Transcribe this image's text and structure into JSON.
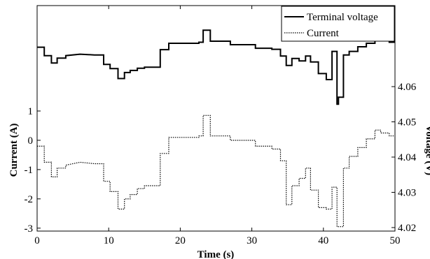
{
  "chart_data": {
    "type": "line",
    "title": "",
    "xlabel": "Time (s)",
    "ylabel_left": "Current (A)",
    "ylabel_right": "Voltage (V)",
    "xlim": [
      0,
      50
    ],
    "ylim_left": [
      -3.1,
      4.6
    ],
    "ylim_right": [
      4.019,
      4.083
    ],
    "x_ticks": [
      "0",
      "10",
      "20",
      "30",
      "40",
      "50"
    ],
    "y_ticks_left": [
      "-3",
      "-2",
      "-1",
      "0",
      "1"
    ],
    "y_ticks_right": [
      "4.02",
      "4.03",
      "4.04",
      "4.05",
      "4.06"
    ],
    "legend_position": "top-right",
    "grid": false,
    "series": [
      {
        "name": "Terminal voltage",
        "axis": "right",
        "style": "solid",
        "color": "#000000",
        "x": [
          0,
          1,
          1,
          2,
          2,
          2.8,
          2.8,
          4,
          4,
          6,
          8,
          9.3,
          9.3,
          10.2,
          10.2,
          11.3,
          11.3,
          12.2,
          12.2,
          13,
          13,
          14,
          14,
          15,
          15,
          17.2,
          17.2,
          18.4,
          18.4,
          22.6,
          22.6,
          23.2,
          23.2,
          24.2,
          24.2,
          27,
          27,
          30.5,
          30.5,
          32.8,
          32.8,
          34,
          34,
          34.8,
          34.8,
          35.6,
          35.6,
          36.6,
          36.6,
          37.5,
          37.5,
          38.2,
          38.2,
          39.3,
          39.3,
          40.4,
          40.4,
          41.2,
          41.2,
          41.9,
          41.9,
          42.1,
          42.1,
          42.8,
          42.8,
          43.6,
          43.6,
          44.8,
          44.8,
          46,
          46,
          47.2,
          47.2,
          48,
          48,
          49.2,
          49.2,
          50
        ],
        "y": [
          4.0712,
          4.0712,
          4.0688,
          4.0688,
          4.0667,
          4.0667,
          4.0681,
          4.0681,
          4.0688,
          4.0692,
          4.069,
          4.069,
          4.0663,
          4.0663,
          4.0651,
          4.0651,
          4.0623,
          4.0623,
          4.064,
          4.064,
          4.0646,
          4.0646,
          4.0652,
          4.0652,
          4.0655,
          4.0655,
          4.0705,
          4.0705,
          4.0723,
          4.0723,
          4.0726,
          4.0726,
          4.076,
          4.076,
          4.0729,
          4.0729,
          4.0719,
          4.0719,
          4.0709,
          4.0709,
          4.0706,
          4.0706,
          4.0687,
          4.0687,
          4.066,
          4.066,
          4.068,
          4.068,
          4.0673,
          4.0673,
          4.0687,
          4.0687,
          4.067,
          4.067,
          4.0637,
          4.0637,
          4.062,
          4.062,
          4.07,
          4.07,
          4.055,
          4.055,
          4.057,
          4.057,
          4.069,
          4.069,
          4.07,
          4.07,
          4.0713,
          4.0713,
          4.0723,
          4.0723,
          4.0739,
          4.0739,
          4.0733,
          4.0733,
          4.0726,
          4.0726
        ]
      },
      {
        "name": "Current",
        "axis": "left",
        "style": "dotted",
        "color": "#000000",
        "x": [
          0,
          1,
          1,
          2,
          2,
          2.8,
          2.8,
          4,
          4,
          6,
          8,
          9.3,
          9.3,
          10.2,
          10.2,
          11.3,
          11.3,
          12.2,
          12.2,
          13,
          13,
          14,
          14,
          15,
          15,
          17.2,
          17.2,
          18.4,
          18.4,
          22.6,
          22.6,
          23.2,
          23.2,
          24.2,
          24.2,
          27,
          27,
          30.5,
          30.5,
          32.8,
          32.8,
          34,
          34,
          34.8,
          34.8,
          35.6,
          35.6,
          36.6,
          36.6,
          37.5,
          37.5,
          38.2,
          38.2,
          39.3,
          39.3,
          40.4,
          40.4,
          41.2,
          41.2,
          41.9,
          41.9,
          42.1,
          42.1,
          42.8,
          42.8,
          43.6,
          43.6,
          44.8,
          44.8,
          46,
          46,
          47.2,
          47.2,
          48,
          48,
          49.2,
          49.2,
          50
        ],
        "y": [
          -0.2,
          -0.2,
          -0.75,
          -0.75,
          -1.25,
          -1.25,
          -0.95,
          -0.95,
          -0.85,
          -0.75,
          -0.8,
          -0.8,
          -1.4,
          -1.4,
          -1.75,
          -1.75,
          -2.35,
          -2.35,
          -2.0,
          -2.0,
          -1.85,
          -1.85,
          -1.65,
          -1.65,
          -1.55,
          -1.55,
          -0.45,
          -0.45,
          0.1,
          0.1,
          0.15,
          0.15,
          0.85,
          0.85,
          0.15,
          0.15,
          0.0,
          0.0,
          -0.2,
          -0.2,
          -0.3,
          -0.3,
          -0.7,
          -0.7,
          -2.2,
          -2.2,
          -1.55,
          -1.55,
          -1.3,
          -1.3,
          -0.95,
          -0.95,
          -1.7,
          -1.7,
          -2.3,
          -2.3,
          -2.35,
          -2.35,
          -1.6,
          -1.6,
          -2.95,
          -2.95,
          -2.95,
          -2.95,
          -0.95,
          -0.95,
          -0.55,
          -0.55,
          -0.25,
          -0.25,
          0.05,
          0.05,
          0.35,
          0.35,
          0.25,
          0.25,
          0.15,
          0.15
        ]
      }
    ]
  }
}
